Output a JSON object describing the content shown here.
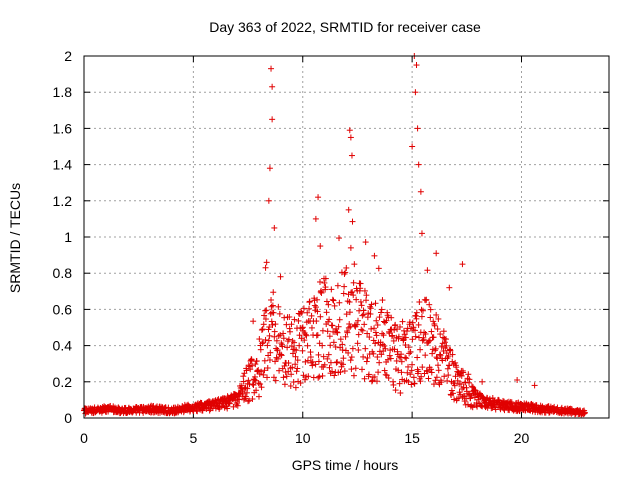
{
  "chart_data": {
    "type": "scatter",
    "title": "Day 363 of 2022, SRMTID for receiver case",
    "xlabel": "GPS time / hours",
    "ylabel": "SRMTID / TECUs",
    "xlim": [
      0,
      24
    ],
    "ylim": [
      0,
      2
    ],
    "xticks": [
      0,
      5,
      10,
      15,
      20
    ],
    "xtick_labels": [
      "0",
      "5",
      "10",
      "15",
      "20"
    ],
    "yticks": [
      0,
      0.2,
      0.4,
      0.6,
      0.8,
      1.0,
      1.2,
      1.4,
      1.6,
      1.8,
      2.0
    ],
    "ytick_labels": [
      "0",
      "0.2",
      "0.4",
      "0.6",
      "0.8",
      "1",
      "1.2",
      "1.4",
      "1.6",
      "1.8",
      "2"
    ],
    "grid": true,
    "marker": "+",
    "color": "#e00000",
    "series": [
      {
        "name": "SRMTID",
        "envelope": [
          {
            "x": 0.0,
            "y": 0.04
          },
          {
            "x": 1.0,
            "y": 0.05
          },
          {
            "x": 2.0,
            "y": 0.04
          },
          {
            "x": 3.0,
            "y": 0.05
          },
          {
            "x": 4.0,
            "y": 0.04
          },
          {
            "x": 5.0,
            "y": 0.06
          },
          {
            "x": 6.0,
            "y": 0.07
          },
          {
            "x": 7.0,
            "y": 0.1
          },
          {
            "x": 7.5,
            "y": 0.2
          },
          {
            "x": 8.0,
            "y": 0.25
          },
          {
            "x": 8.5,
            "y": 0.5
          },
          {
            "x": 9.0,
            "y": 0.4
          },
          {
            "x": 9.5,
            "y": 0.35
          },
          {
            "x": 10.0,
            "y": 0.38
          },
          {
            "x": 10.5,
            "y": 0.45
          },
          {
            "x": 11.0,
            "y": 0.5
          },
          {
            "x": 11.5,
            "y": 0.48
          },
          {
            "x": 12.0,
            "y": 0.55
          },
          {
            "x": 12.5,
            "y": 0.5
          },
          {
            "x": 13.0,
            "y": 0.45
          },
          {
            "x": 13.5,
            "y": 0.4
          },
          {
            "x": 14.0,
            "y": 0.38
          },
          {
            "x": 14.5,
            "y": 0.3
          },
          {
            "x": 15.0,
            "y": 0.35
          },
          {
            "x": 15.5,
            "y": 0.45
          },
          {
            "x": 16.0,
            "y": 0.4
          },
          {
            "x": 16.5,
            "y": 0.3
          },
          {
            "x": 17.0,
            "y": 0.2
          },
          {
            "x": 17.5,
            "y": 0.15
          },
          {
            "x": 18.0,
            "y": 0.1
          },
          {
            "x": 19.0,
            "y": 0.07
          },
          {
            "x": 20.0,
            "y": 0.06
          },
          {
            "x": 21.0,
            "y": 0.05
          },
          {
            "x": 22.0,
            "y": 0.04
          },
          {
            "x": 22.8,
            "y": 0.03
          }
        ],
        "spikes": [
          {
            "x": 8.55,
            "y": 1.93
          },
          {
            "x": 8.6,
            "y": 1.83
          },
          {
            "x": 8.6,
            "y": 1.65
          },
          {
            "x": 8.5,
            "y": 1.38
          },
          {
            "x": 8.45,
            "y": 1.2
          },
          {
            "x": 8.7,
            "y": 1.05
          },
          {
            "x": 8.3,
            "y": 0.83
          },
          {
            "x": 10.7,
            "y": 1.22
          },
          {
            "x": 10.6,
            "y": 1.1
          },
          {
            "x": 10.8,
            "y": 0.95
          },
          {
            "x": 12.15,
            "y": 1.59
          },
          {
            "x": 12.2,
            "y": 1.55
          },
          {
            "x": 12.25,
            "y": 1.45
          },
          {
            "x": 12.1,
            "y": 1.15
          },
          {
            "x": 12.2,
            "y": 0.94
          },
          {
            "x": 15.1,
            "y": 2.0
          },
          {
            "x": 15.2,
            "y": 1.95
          },
          {
            "x": 15.15,
            "y": 1.8
          },
          {
            "x": 15.25,
            "y": 1.6
          },
          {
            "x": 15.0,
            "y": 1.5
          },
          {
            "x": 15.3,
            "y": 1.4
          },
          {
            "x": 15.4,
            "y": 1.25
          },
          {
            "x": 15.45,
            "y": 1.02
          },
          {
            "x": 16.1,
            "y": 0.91
          },
          {
            "x": 17.3,
            "y": 0.85
          },
          {
            "x": 16.7,
            "y": 0.72
          },
          {
            "x": 18.2,
            "y": 0.2
          },
          {
            "x": 20.6,
            "y": 0.18
          },
          {
            "x": 19.8,
            "y": 0.21
          }
        ],
        "x_range": [
          0,
          22.9
        ],
        "sampling_interval_hours": 0.0167
      }
    ]
  }
}
